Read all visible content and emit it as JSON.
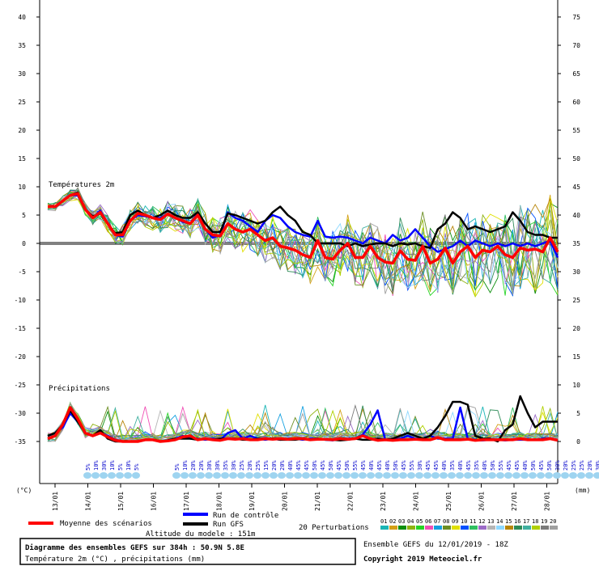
{
  "chart_data": {
    "type": "line",
    "y_left_ticks": [
      40,
      35,
      30,
      25,
      20,
      15,
      10,
      5,
      0,
      -5,
      -10,
      -15,
      -20,
      -25,
      -30,
      -35
    ],
    "y_right_ticks": [
      75,
      70,
      65,
      60,
      55,
      50,
      45,
      40,
      35,
      30,
      25,
      20,
      15,
      10,
      5,
      0
    ],
    "y_left_unit": "(°C)",
    "y_right_unit": "(mm)",
    "x_ticks": [
      "13/01",
      "14/01",
      "15/01",
      "16/01",
      "17/01",
      "18/01",
      "19/01",
      "20/01",
      "21/01",
      "22/01",
      "23/01",
      "24/01",
      "25/01",
      "26/01",
      "27/01",
      "28/01"
    ],
    "temp_label": "Températures 2m",
    "precip_label": "Précipitations",
    "temp_mean": [
      6.5,
      6.5,
      7.5,
      8.5,
      8.8,
      6,
      4.5,
      5.5,
      3.5,
      1.5,
      1.5,
      4,
      5.3,
      5,
      4.5,
      4.2,
      5.2,
      4.5,
      4,
      3.5,
      5,
      2.5,
      1.5,
      1.3,
      3.5,
      2.5,
      2,
      2.5,
      1.5,
      0.5,
      1,
      -0.5,
      -0.8,
      -1.2,
      -2,
      -2.5,
      0.5,
      -2.5,
      -2.8,
      -1.2,
      0,
      -2.5,
      -2.5,
      -0.5,
      -2.5,
      -3.3,
      -3.5,
      -1.3,
      -2.8,
      -3,
      -0.5,
      -3.5,
      -2.8,
      -0.8,
      -3.5,
      -1.5,
      -0.5,
      -2.5,
      -1.2,
      -1.5,
      -0.5,
      -2,
      -2.5,
      -0.8,
      -1.2,
      -1,
      -1.5,
      1,
      -1.5
    ],
    "temp_gfs": [
      6.5,
      6.5,
      7.5,
      8.5,
      9,
      6,
      4.8,
      5.3,
      3.5,
      1.8,
      2,
      5,
      5.8,
      5,
      4.5,
      5,
      5.8,
      5,
      4.5,
      4.5,
      5.5,
      3.5,
      2,
      2,
      5.3,
      5,
      4.5,
      4,
      3.5,
      4,
      5.5,
      6.5,
      5,
      4,
      2,
      1.5,
      0,
      0,
      0,
      0,
      -0.5,
      0,
      -0.5,
      -0.2,
      0,
      0,
      -0.5,
      0,
      -0.2,
      0,
      -0.5,
      -0.8,
      2.5,
      3.5,
      5.5,
      4.5,
      2.5,
      3,
      2.5,
      2,
      2.5,
      3,
      5.5,
      4,
      2,
      1.5,
      1.5,
      1,
      1
    ],
    "temp_control": [
      6.5,
      6.5,
      7.5,
      8.5,
      8.5,
      6,
      4.5,
      5.8,
      3.5,
      1.5,
      1.2,
      4,
      5,
      4.8,
      4.5,
      4.5,
      5.2,
      4.5,
      3.8,
      3.5,
      5.3,
      2.5,
      1,
      1.5,
      5.5,
      4.5,
      4,
      3,
      2,
      4,
      5,
      4.5,
      3,
      2,
      1.5,
      1.2,
      4,
      1.2,
      1,
      1.2,
      1,
      0.5,
      0,
      1,
      0.5,
      0,
      1.5,
      0.5,
      1,
      2.5,
      1,
      -0.5,
      -1.5,
      -1,
      -0.5,
      0.5,
      -0.5,
      0.5,
      0,
      -0.5,
      0,
      -0.5,
      0,
      -0.5,
      0,
      -0.5,
      0,
      0.5,
      -2.5
    ],
    "precip_mean": [
      0.5,
      1,
      3,
      6,
      4,
      1.5,
      1,
      1.5,
      0.8,
      0.2,
      0,
      0,
      0,
      0.3,
      0.3,
      0,
      0.1,
      0.3,
      0.8,
      1,
      0.3,
      0.5,
      0.3,
      0.2,
      0.5,
      0.4,
      0.5,
      0.3,
      0.3,
      0.5,
      0.4,
      0.5,
      0.4,
      0.5,
      0.5,
      0.3,
      0.4,
      0.4,
      0.3,
      0.5,
      0.4,
      0.5,
      1,
      0.5,
      0.2,
      0.3,
      0.2,
      0.3,
      0.3,
      0.4,
      0.3,
      0.3,
      0.7,
      0.3,
      0.3,
      0.3,
      0.4,
      0.2,
      0.3,
      0.3,
      0.3,
      0.3,
      0.3,
      0.5,
      0.3,
      0.3,
      0.3,
      0.5,
      0.2
    ],
    "precip_gfs": [
      1,
      1.5,
      3,
      5.5,
      3.5,
      1.5,
      1,
      2,
      0.5,
      0,
      0,
      0,
      0,
      0.3,
      0.3,
      0,
      0.2,
      0.5,
      0.5,
      0.5,
      0.3,
      0.5,
      0.3,
      0.5,
      0.5,
      0.5,
      0.3,
      0.3,
      0.5,
      0.5,
      0.5,
      0.3,
      0.3,
      0.3,
      0.5,
      0.3,
      0.5,
      0.3,
      0.3,
      0.2,
      0.3,
      0.5,
      0.3,
      0.3,
      0.5,
      0.3,
      0.5,
      1,
      1.5,
      1,
      0.5,
      1,
      2.5,
      4.5,
      7,
      7,
      6.5,
      1,
      0.5,
      0.5,
      0,
      2,
      3,
      8,
      5,
      2.5,
      3.5,
      3.5,
      3.5
    ],
    "precip_control": [
      1,
      1.5,
      2.5,
      5,
      3.5,
      1.5,
      1,
      1.5,
      1,
      0.3,
      0,
      0,
      0,
      0.3,
      0.3,
      0,
      0.2,
      0.5,
      1,
      0.5,
      0.5,
      0.3,
      0.5,
      0.3,
      1.5,
      2,
      0.5,
      1,
      0.5,
      0.3,
      0.5,
      0.3,
      0.5,
      0.5,
      0.3,
      0.5,
      0.5,
      0.3,
      0.2,
      0.5,
      0.5,
      0.5,
      1.2,
      3,
      5.5,
      0.3,
      0.3,
      0.5,
      1,
      0.5,
      0.5,
      1,
      0.5,
      0.5,
      0.5,
      6,
      0.5,
      0.2,
      0.2,
      0.3,
      0.3,
      0.2,
      0.3,
      0.3,
      0.3,
      0.3,
      0.5,
      0.5,
      0.3
    ],
    "pop_labels": [
      "5%",
      "10%",
      "30%",
      "10%",
      "5%",
      "10%",
      "5%"
    ],
    "pop_labels_2": [
      "5%",
      "10%",
      "20%",
      "20%",
      "30%",
      "30%",
      "35%",
      "30%",
      "25%",
      "20%",
      "25%",
      "15%",
      "20%",
      "20%",
      "40%",
      "45%",
      "45%",
      "50%",
      "45%",
      "50%",
      "45%",
      "50%",
      "55%",
      "45%",
      "40%",
      "45%",
      "40%",
      "50%",
      "45%",
      "55%",
      "30%",
      "45%",
      "45%",
      "40%",
      "35%",
      "40%",
      "45%",
      "35%",
      "40%",
      "50%",
      "55%",
      "45%",
      "45%",
      "40%",
      "50%",
      "45%",
      "50%",
      "30%",
      "20%",
      "25%",
      "25%",
      "20%",
      "30%",
      "35%"
    ]
  },
  "legend": {
    "mean": "Moyenne des scénarios",
    "control": "Run de contrôle",
    "gfs": "Run GFS",
    "perturbations": "20 Perturbations",
    "perturbation_ids": [
      "01",
      "02",
      "03",
      "04",
      "05",
      "06",
      "07",
      "08",
      "09",
      "10",
      "11",
      "12",
      "13",
      "14",
      "15",
      "16",
      "17",
      "18",
      "19",
      "20"
    ],
    "perturbation_colors": [
      "#1ab5b5",
      "#d4a017",
      "#0d8f0d",
      "#8fb310",
      "#26d426",
      "#f04fb5",
      "#14a0e0",
      "#6b8e23",
      "#e0e000",
      "#0050ff",
      "#30c060",
      "#9c6cc8",
      "#b5b5b5",
      "#8ed8ff",
      "#b8860b",
      "#2e8b57",
      "#40b0a0",
      "#b0d000",
      "#7a7a7a",
      "#a0a0a0"
    ]
  },
  "colors": {
    "mean": "#ff0000",
    "control": "#0000ff",
    "gfs": "#000000"
  },
  "altitude": "Altitude du modele : 151m",
  "info": {
    "title": "Diagramme des ensembles GEFS sur 384h : 50.9N 5.8E",
    "subtitle": "Température 2m (°C) , précipitations (mm)",
    "run": "Ensemble GEFS du 12/01/2019 - 18Z",
    "copyright": "Copyright 2019 Meteociel.fr"
  }
}
